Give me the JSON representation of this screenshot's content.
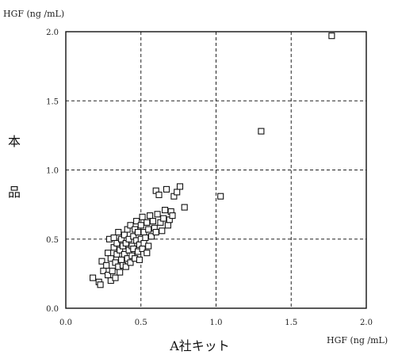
{
  "chart_data": {
    "type": "scatter",
    "y_unit_label": "HGF (ng /mL)",
    "x_unit_label": "HGF (ng /mL)",
    "xlabel": "A社キット",
    "ylabel_lines": [
      "本",
      "品"
    ],
    "xlim": [
      0.0,
      2.0
    ],
    "ylim": [
      0.0,
      2.0
    ],
    "x_ticks": [
      "0.0",
      "0.5",
      "1.0",
      "1.5",
      "2.0"
    ],
    "y_ticks": [
      "0.0",
      "0.5",
      "1.0",
      "1.5",
      "2.0"
    ],
    "grid": true,
    "marker": "open-square",
    "points": [
      [
        0.18,
        0.22
      ],
      [
        0.22,
        0.19
      ],
      [
        0.23,
        0.17
      ],
      [
        0.24,
        0.34
      ],
      [
        0.25,
        0.27
      ],
      [
        0.27,
        0.31
      ],
      [
        0.28,
        0.24
      ],
      [
        0.28,
        0.4
      ],
      [
        0.29,
        0.5
      ],
      [
        0.3,
        0.2
      ],
      [
        0.3,
        0.36
      ],
      [
        0.31,
        0.27
      ],
      [
        0.32,
        0.44
      ],
      [
        0.32,
        0.51
      ],
      [
        0.33,
        0.33
      ],
      [
        0.33,
        0.22
      ],
      [
        0.34,
        0.39
      ],
      [
        0.34,
        0.47
      ],
      [
        0.35,
        0.3
      ],
      [
        0.35,
        0.55
      ],
      [
        0.36,
        0.26
      ],
      [
        0.36,
        0.42
      ],
      [
        0.37,
        0.5
      ],
      [
        0.37,
        0.35
      ],
      [
        0.38,
        0.31
      ],
      [
        0.38,
        0.45
      ],
      [
        0.39,
        0.53
      ],
      [
        0.39,
        0.39
      ],
      [
        0.4,
        0.3
      ],
      [
        0.4,
        0.47
      ],
      [
        0.41,
        0.36
      ],
      [
        0.41,
        0.57
      ],
      [
        0.42,
        0.42
      ],
      [
        0.42,
        0.5
      ],
      [
        0.43,
        0.33
      ],
      [
        0.43,
        0.6
      ],
      [
        0.44,
        0.45
      ],
      [
        0.44,
        0.38
      ],
      [
        0.45,
        0.52
      ],
      [
        0.45,
        0.43
      ],
      [
        0.46,
        0.36
      ],
      [
        0.46,
        0.57
      ],
      [
        0.47,
        0.49
      ],
      [
        0.47,
        0.63
      ],
      [
        0.48,
        0.41
      ],
      [
        0.48,
        0.55
      ],
      [
        0.49,
        0.46
      ],
      [
        0.49,
        0.35
      ],
      [
        0.5,
        0.6
      ],
      [
        0.5,
        0.5
      ],
      [
        0.51,
        0.43
      ],
      [
        0.51,
        0.66
      ],
      [
        0.52,
        0.55
      ],
      [
        0.52,
        0.47
      ],
      [
        0.53,
        0.51
      ],
      [
        0.54,
        0.4
      ],
      [
        0.54,
        0.62
      ],
      [
        0.55,
        0.57
      ],
      [
        0.55,
        0.45
      ],
      [
        0.56,
        0.67
      ],
      [
        0.57,
        0.52
      ],
      [
        0.58,
        0.63
      ],
      [
        0.59,
        0.58
      ],
      [
        0.6,
        0.55
      ],
      [
        0.6,
        0.85
      ],
      [
        0.61,
        0.68
      ],
      [
        0.62,
        0.82
      ],
      [
        0.63,
        0.62
      ],
      [
        0.64,
        0.56
      ],
      [
        0.65,
        0.65
      ],
      [
        0.66,
        0.71
      ],
      [
        0.67,
        0.86
      ],
      [
        0.68,
        0.6
      ],
      [
        0.69,
        0.64
      ],
      [
        0.7,
        0.7
      ],
      [
        0.71,
        0.67
      ],
      [
        0.72,
        0.81
      ],
      [
        0.74,
        0.84
      ],
      [
        0.76,
        0.88
      ],
      [
        0.79,
        0.73
      ],
      [
        1.03,
        0.81
      ],
      [
        1.3,
        1.28
      ],
      [
        1.77,
        1.97
      ]
    ]
  }
}
